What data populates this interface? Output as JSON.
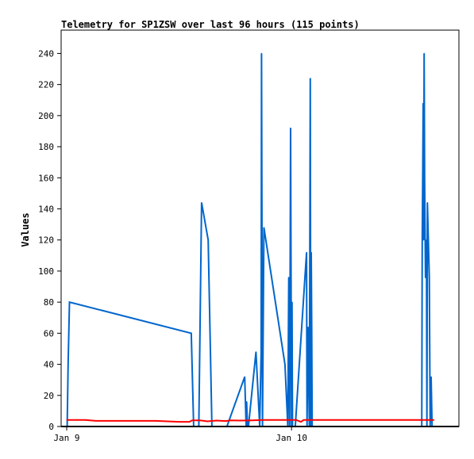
{
  "chart_data": {
    "type": "line",
    "title": "Telemetry for SP1ZSW over last 96 hours (115 points)",
    "xlabel": "",
    "ylabel": "Values",
    "ylim": [
      0,
      255
    ],
    "xlim_hours": [
      0,
      51.5
    ],
    "x_unit": "hours after Jan 9 00:00",
    "x_ticks": [
      {
        "label": "Jan 9",
        "x": 0
      },
      {
        "label": "Jan 10",
        "x": 24
      }
    ],
    "y_ticks": [
      0,
      20,
      40,
      60,
      80,
      100,
      120,
      140,
      160,
      180,
      200,
      220,
      240
    ],
    "grid": false,
    "legend": "none",
    "series": [
      {
        "color": "#0066cc",
        "x": [
          0.05,
          0.15,
          0.3,
          13.3,
          13.55,
          14.1,
          14.4,
          15.1,
          15.5,
          17.1,
          19.0,
          19.15,
          19.2,
          19.3,
          19.4,
          20.2,
          20.6,
          20.75,
          20.8,
          20.9,
          21.05,
          23.3,
          23.6,
          23.7,
          23.8,
          23.9,
          24.0,
          24.05,
          24.1,
          24.15,
          24.2,
          24.3,
          24.4,
          25.6,
          25.65,
          25.75,
          25.9,
          26.0,
          26.05,
          26.1,
          26.15,
          26.2,
          26.25,
          26.3,
          37.6,
          37.8,
          37.9,
          37.95,
          38.0,
          38.05,
          38.1,
          38.15,
          38.2,
          38.3,
          38.35,
          38.4,
          38.45,
          38.5,
          38.6,
          38.7,
          38.8,
          38.9,
          39.0,
          39.1,
          39.2
        ],
        "y": [
          0,
          40,
          80,
          60,
          0,
          0,
          144,
          120,
          0,
          0,
          32,
          0,
          16,
          0,
          0,
          48,
          0,
          48,
          240,
          0,
          128,
          40,
          0,
          96,
          0,
          192,
          0,
          80,
          0,
          0,
          0,
          0,
          0,
          112,
          0,
          64,
          0,
          224,
          0,
          112,
          64,
          0,
          0,
          0,
          0,
          0,
          0,
          120,
          160,
          208,
          120,
          240,
          160,
          96,
          96,
          120,
          0,
          144,
          120,
          96,
          0,
          32,
          0,
          0,
          0
        ]
      },
      {
        "color": "#ff0000",
        "x": [
          0,
          2.0,
          3.1,
          6.0,
          9.5,
          12.0,
          13.1,
          13.4,
          14.2,
          15.0,
          16.0,
          17.0,
          17.5,
          18.5,
          19.8,
          21.0,
          23.0,
          24.5,
          25.0,
          25.3,
          26.0,
          30.0,
          34.0,
          39.2
        ],
        "y": [
          4.2,
          4.2,
          3.6,
          3.6,
          3.6,
          3.0,
          3.0,
          4.0,
          4.0,
          3.3,
          3.8,
          3.5,
          4.0,
          3.8,
          4.0,
          4.2,
          4.2,
          4.2,
          3.0,
          4.2,
          4.2,
          4.2,
          4.2,
          4.2
        ]
      }
    ]
  }
}
